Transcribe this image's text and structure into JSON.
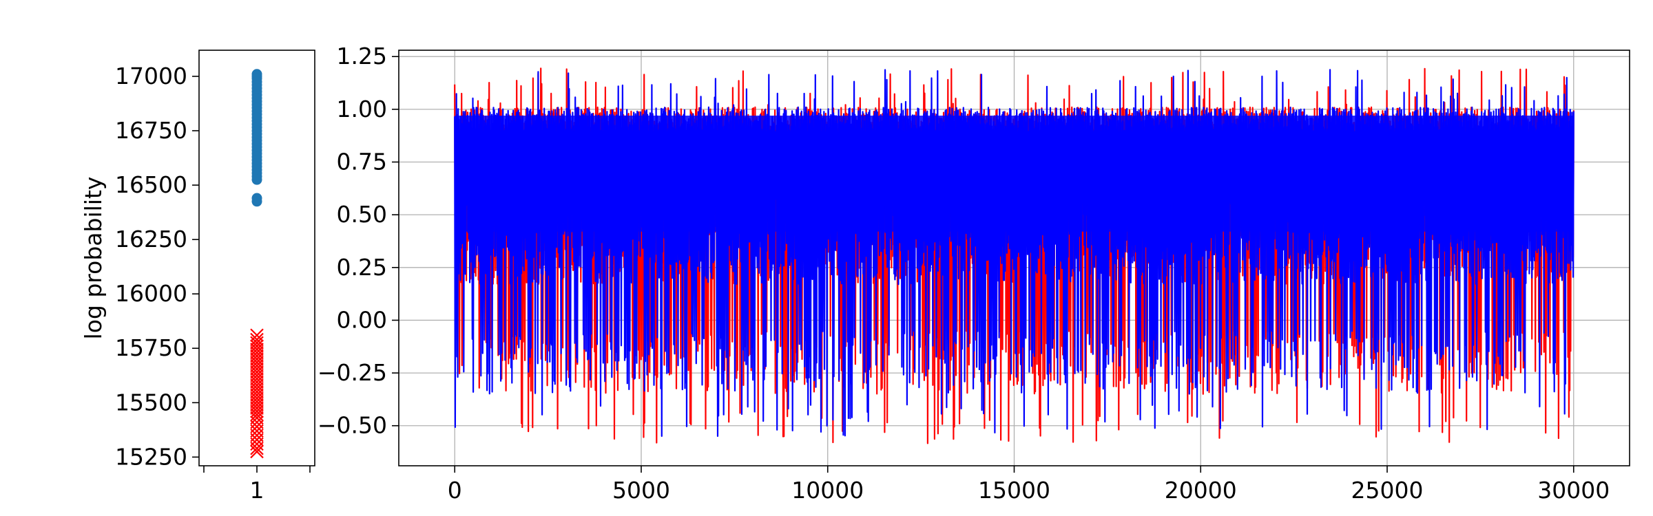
{
  "chart_data": [
    {
      "type": "scatter",
      "ylabel": "log probability",
      "xticks": [
        "1"
      ],
      "ylim": [
        15210,
        17120
      ],
      "yticks": [
        15250,
        15500,
        15750,
        16000,
        16250,
        16500,
        16750,
        17000
      ],
      "ytick_labels": [
        "15250",
        "15500",
        "15750",
        "16000",
        "16250",
        "16500",
        "16750",
        "17000"
      ],
      "grid": false,
      "series": [
        {
          "marker": "circle",
          "color": "#1f77b4",
          "x": 1,
          "values": [
            17010,
            17000,
            16990,
            16975,
            16960,
            16945,
            16930,
            16915,
            16900,
            16885,
            16870,
            16855,
            16840,
            16825,
            16810,
            16795,
            16780,
            16765,
            16750,
            16735,
            16720,
            16705,
            16690,
            16675,
            16660,
            16645,
            16630,
            16615,
            16600,
            16585,
            16570,
            16555,
            16540,
            16525,
            16440,
            16425
          ]
        },
        {
          "marker": "x",
          "color": "#ff0000",
          "x": 1,
          "values": [
            15810,
            15790,
            15775,
            15760,
            15745,
            15730,
            15715,
            15700,
            15685,
            15670,
            15655,
            15640,
            15625,
            15610,
            15595,
            15580,
            15565,
            15550,
            15535,
            15520,
            15505,
            15490,
            15475,
            15460,
            15445,
            15430,
            15410,
            15390,
            15370,
            15350,
            15330,
            15310,
            15290,
            15275
          ]
        }
      ]
    },
    {
      "type": "line",
      "xlim": [
        -1500,
        31500
      ],
      "ylim": [
        -0.69,
        1.28
      ],
      "xticks": [
        0,
        5000,
        10000,
        15000,
        20000,
        25000,
        30000
      ],
      "xtick_labels": [
        "0",
        "5000",
        "10000",
        "15000",
        "20000",
        "25000",
        "30000"
      ],
      "yticks": [
        -0.5,
        -0.25,
        0.0,
        0.25,
        0.5,
        0.75,
        1.0,
        1.25
      ],
      "ytick_labels": [
        "−0.50",
        "−0.25",
        "0.00",
        "0.25",
        "0.50",
        "0.75",
        "1.00",
        "1.25"
      ],
      "grid": true,
      "x_range": [
        0,
        30000
      ],
      "series": [
        {
          "color": "#ff0000",
          "band": [
            0.42,
            0.95
          ],
          "extremes": [
            -0.59,
            1.2
          ]
        },
        {
          "color": "#0000ff",
          "band": [
            0.42,
            0.95
          ],
          "extremes": [
            -0.55,
            1.19
          ]
        }
      ]
    }
  ]
}
